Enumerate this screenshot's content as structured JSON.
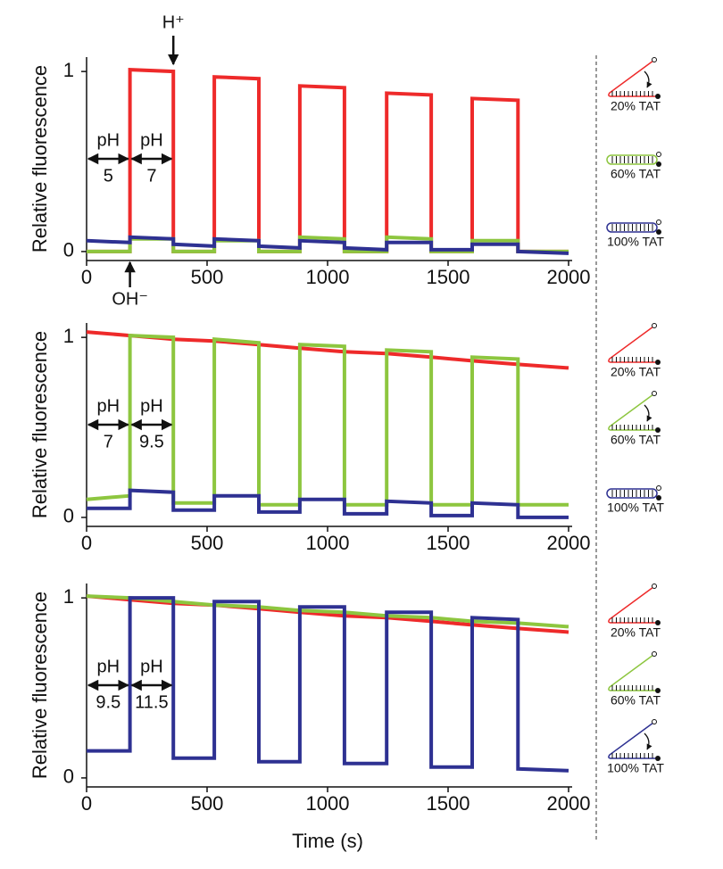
{
  "chart_data": [
    {
      "type": "line",
      "ylabel": "Relative fluorescence",
      "x": [
        0,
        180,
        180,
        360,
        360,
        530,
        530,
        715,
        715,
        885,
        885,
        1070,
        1070,
        1245,
        1245,
        1430,
        1430,
        1600,
        1600,
        1790,
        1790,
        2000
      ],
      "xlim": [
        0,
        2000
      ],
      "xticks": [
        0,
        500,
        1000,
        1500,
        2000
      ],
      "ylim": [
        -0.05,
        1.08
      ],
      "yticks": [
        0,
        1
      ],
      "acid_label": "H⁺",
      "base_label": "OH⁻",
      "ph_steps": [
        {
          "label": "pH",
          "value": "5"
        },
        {
          "label": "pH",
          "value": "7"
        }
      ],
      "series": [
        {
          "name": "20% TAT",
          "color": "#ee2a2a",
          "values": [
            0,
            0,
            1.01,
            1.0,
            0,
            0,
            0.97,
            0.96,
            0,
            0,
            0.92,
            0.91,
            0,
            0,
            0.88,
            0.87,
            0,
            0,
            0.85,
            0.84,
            0,
            0
          ]
        },
        {
          "name": "60% TAT",
          "color": "#8dc63f",
          "values": [
            0,
            0,
            0.07,
            0.07,
            0,
            0,
            0.06,
            0.06,
            0,
            0,
            0.08,
            0.07,
            0,
            0,
            0.08,
            0.07,
            0,
            0,
            0.06,
            0.06,
            0,
            0
          ]
        },
        {
          "name": "100% TAT",
          "color": "#2e3192",
          "values": [
            0.06,
            0.05,
            0.08,
            0.07,
            0.04,
            0.03,
            0.07,
            0.06,
            0.03,
            0.02,
            0.06,
            0.05,
            0.02,
            0.01,
            0.05,
            0.05,
            0.01,
            0.01,
            0.04,
            0.04,
            0,
            -0.01
          ]
        }
      ]
    },
    {
      "type": "line",
      "ylabel": "Relative fluorescence",
      "x": [
        0,
        180,
        180,
        360,
        360,
        530,
        530,
        715,
        715,
        885,
        885,
        1070,
        1070,
        1245,
        1245,
        1430,
        1430,
        1600,
        1600,
        1790,
        1790,
        2000
      ],
      "xlim": [
        0,
        2000
      ],
      "xticks": [
        0,
        500,
        1000,
        1500,
        2000
      ],
      "ylim": [
        -0.05,
        1.08
      ],
      "yticks": [
        0,
        1
      ],
      "ph_steps": [
        {
          "label": "pH",
          "value": "7"
        },
        {
          "label": "pH",
          "value": "9.5"
        }
      ],
      "series": [
        {
          "name": "20% TAT",
          "color": "#ee2a2a",
          "values": [
            1.03,
            1.01,
            1.01,
            0.99,
            0.99,
            0.98,
            0.98,
            0.96,
            0.96,
            0.94,
            0.94,
            0.92,
            0.92,
            0.91,
            0.91,
            0.89,
            0.89,
            0.87,
            0.87,
            0.85,
            0.85,
            0.83
          ]
        },
        {
          "name": "60% TAT",
          "color": "#8dc63f",
          "values": [
            0.1,
            0.12,
            1.01,
            1.0,
            0.08,
            0.08,
            0.99,
            0.97,
            0.07,
            0.07,
            0.96,
            0.95,
            0.07,
            0.07,
            0.93,
            0.92,
            0.07,
            0.07,
            0.89,
            0.88,
            0.07,
            0.07
          ]
        },
        {
          "name": "100% TAT",
          "color": "#2e3192",
          "values": [
            0.05,
            0.05,
            0.15,
            0.14,
            0.04,
            0.04,
            0.12,
            0.12,
            0.03,
            0.03,
            0.1,
            0.1,
            0.02,
            0.02,
            0.09,
            0.08,
            0.01,
            0.01,
            0.08,
            0.07,
            0,
            0
          ]
        }
      ]
    },
    {
      "type": "line",
      "ylabel": "Relative fluorescence",
      "xlabel": "Time (s)",
      "x": [
        0,
        180,
        180,
        360,
        360,
        530,
        530,
        715,
        715,
        885,
        885,
        1070,
        1070,
        1245,
        1245,
        1430,
        1430,
        1600,
        1600,
        1790,
        1790,
        2000
      ],
      "xlim": [
        0,
        2000
      ],
      "xticks": [
        0,
        500,
        1000,
        1500,
        2000
      ],
      "ylim": [
        -0.05,
        1.08
      ],
      "yticks": [
        0,
        1
      ],
      "ph_steps": [
        {
          "label": "pH",
          "value": "9.5"
        },
        {
          "label": "pH",
          "value": "11.5"
        }
      ],
      "series": [
        {
          "name": "20% TAT",
          "color": "#ee2a2a",
          "values": [
            1.01,
            0.99,
            0.99,
            0.97,
            0.97,
            0.96,
            0.96,
            0.94,
            0.94,
            0.92,
            0.92,
            0.9,
            0.9,
            0.89,
            0.89,
            0.87,
            0.87,
            0.85,
            0.85,
            0.83,
            0.83,
            0.81
          ]
        },
        {
          "name": "60% TAT",
          "color": "#8dc63f",
          "values": [
            1.01,
            1.0,
            1.0,
            0.98,
            0.98,
            0.96,
            0.96,
            0.95,
            0.95,
            0.93,
            0.93,
            0.92,
            0.92,
            0.9,
            0.9,
            0.89,
            0.89,
            0.87,
            0.87,
            0.86,
            0.86,
            0.84
          ]
        },
        {
          "name": "100% TAT",
          "color": "#2e3192",
          "values": [
            0.15,
            0.15,
            1.0,
            1.0,
            0.11,
            0.11,
            0.98,
            0.98,
            0.09,
            0.09,
            0.95,
            0.95,
            0.08,
            0.08,
            0.92,
            0.92,
            0.06,
            0.06,
            0.89,
            0.88,
            0.05,
            0.04
          ]
        }
      ]
    }
  ]
}
